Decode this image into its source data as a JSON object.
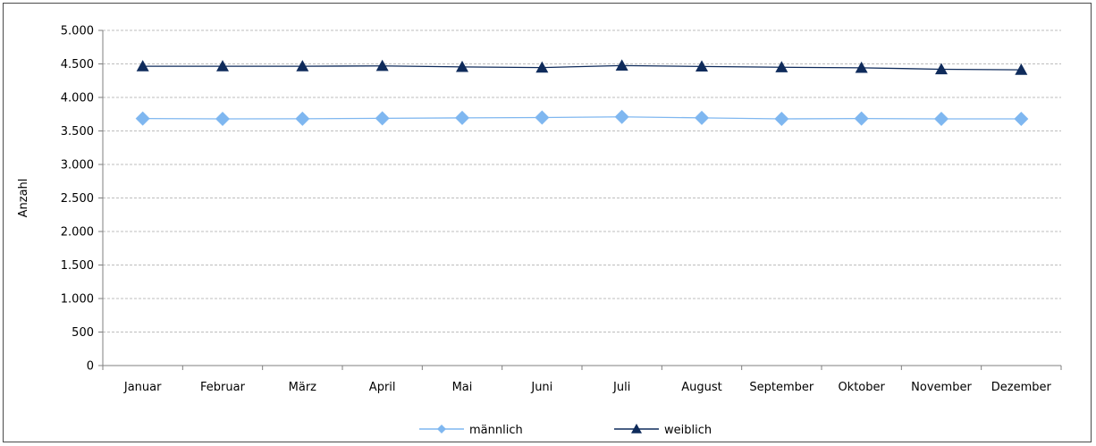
{
  "chart_data": {
    "type": "line",
    "title": "",
    "xlabel": "",
    "ylabel": "Anzahl",
    "ylim": [
      0,
      5000
    ],
    "yticks": [
      0,
      500,
      1000,
      1500,
      2000,
      2500,
      3000,
      3500,
      4000,
      4500,
      5000
    ],
    "ytick_labels": [
      "0",
      "500",
      "1.000",
      "1.500",
      "2.000",
      "2.500",
      "3.000",
      "3.500",
      "4.000",
      "4.500",
      "5.000"
    ],
    "grid": true,
    "legend_position": "bottom",
    "categories": [
      "Januar",
      "Februar",
      "März",
      "April",
      "Mai",
      "Juni",
      "Juli",
      "August",
      "September",
      "Oktober",
      "November",
      "Dezember"
    ],
    "series": [
      {
        "name": "männlich",
        "color": "#7fb7f0",
        "marker": "diamond",
        "values": [
          3685,
          3680,
          3682,
          3688,
          3695,
          3700,
          3710,
          3695,
          3680,
          3685,
          3680,
          3680
        ]
      },
      {
        "name": "weiblich",
        "color": "#0f2b5b",
        "marker": "triangle",
        "values": [
          4465,
          4465,
          4465,
          4470,
          4455,
          4445,
          4475,
          4462,
          4450,
          4442,
          4420,
          4412
        ]
      }
    ]
  }
}
